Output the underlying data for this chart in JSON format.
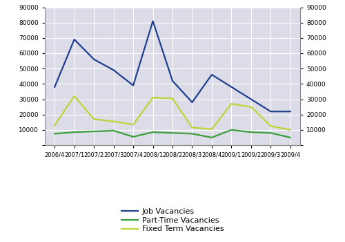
{
  "x_labels": [
    "2006/4",
    "2007/1",
    "2007/2",
    "2007/3",
    "2007/4",
    "2008/1",
    "2008/2",
    "2008/3",
    "2008/4",
    "2009/1",
    "2009/2",
    "2009/3",
    "2009/4"
  ],
  "job_vacancies": [
    38000,
    69000,
    56000,
    49000,
    39000,
    81000,
    42000,
    28000,
    46000,
    38000,
    30000,
    22000,
    22000
  ],
  "parttime_vacancies": [
    7500,
    8500,
    9000,
    9500,
    5500,
    8500,
    8000,
    7500,
    5000,
    10000,
    8500,
    8000,
    5000
  ],
  "fixedterm_vacancies": [
    13000,
    32000,
    17000,
    15500,
    13500,
    31000,
    30500,
    11500,
    10500,
    27000,
    25000,
    12500,
    10000
  ],
  "job_color": "#1e3f8f",
  "parttime_color": "#3a9e3a",
  "fixedterm_color": "#bcd435",
  "ylim": [
    0,
    90000
  ],
  "yticks": [
    0,
    10000,
    20000,
    30000,
    40000,
    50000,
    60000,
    70000,
    80000,
    90000
  ],
  "background_color": "#dcdce8",
  "legend_labels": [
    "Job Vacancies",
    "Part-Time Vacancies",
    "Fixed Term Vacancies"
  ],
  "grid_color": "#ffffff",
  "line_width": 1.6
}
